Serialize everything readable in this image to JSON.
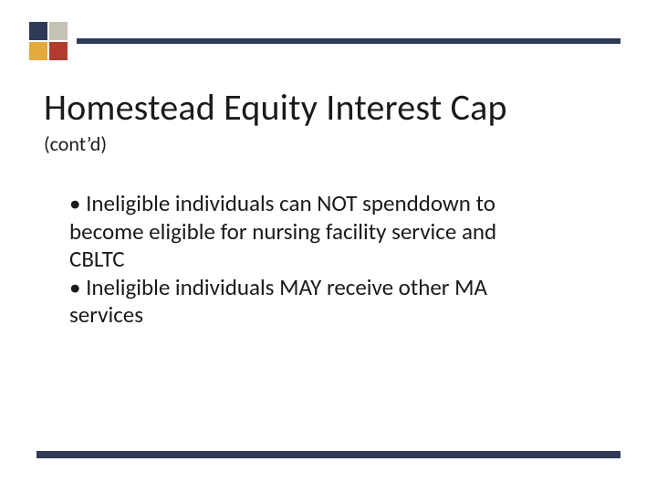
{
  "logo": {
    "colors": {
      "top_left": "#2f3a57",
      "top_right": "#c7c2b6",
      "bottom_left": "#e6a93b",
      "bottom_right": "#b23c2e"
    }
  },
  "rules": {
    "top_color": "#2f3a57",
    "bottom_color": "#2f3a57"
  },
  "title": "Homestead Equity Interest Cap",
  "subtitle": "(cont’d)",
  "bullets": [
    "Ineligible individuals can NOT spenddown to become eligible for nursing facility service and CBLTC",
    "Ineligible individuals MAY receive other MA services"
  ],
  "typography": {
    "title_fontsize": 40,
    "subtitle_fontsize": 22,
    "body_fontsize": 25,
    "text_color": "#1a1a1a",
    "background_color": "#ffffff"
  }
}
